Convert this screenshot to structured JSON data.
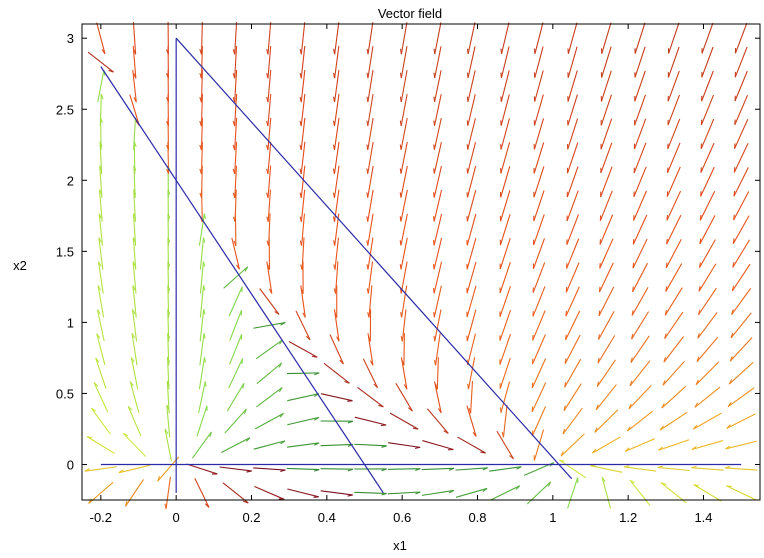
{
  "chart_data": {
    "type": "vector_field",
    "title": "Vector field",
    "xlabel": "x1",
    "ylabel": "x2",
    "xlim": [
      -0.25,
      1.55
    ],
    "ylim": [
      -0.25,
      3.1
    ],
    "xticks": [
      -0.2,
      0,
      0.2,
      0.4,
      0.6,
      0.8,
      1,
      1.2,
      1.4
    ],
    "xtick_labels": [
      "-0.2",
      "0",
      "0.2",
      "0.4",
      "0.6",
      "0.8",
      "1",
      "1.2",
      "1.4"
    ],
    "yticks": [
      0,
      0.5,
      1,
      1.5,
      2,
      2.5,
      3
    ],
    "ytick_labels": [
      "0",
      "0.5",
      "1",
      "1.5",
      "2",
      "2.5",
      "3"
    ],
    "field": {
      "equations": [
        "dx1/dt = x1*(1 - x1 - x2/2)",
        "dx2/dt = x2*(2 - 4*x1 - x2)"
      ],
      "x_range": [
        -0.2,
        1.5
      ],
      "y_range": [
        -0.2,
        3.0
      ],
      "grid": [
        20,
        20
      ],
      "arrow_style": "thin lines with open arrowheads",
      "color_map": [
        "#2e8b2e",
        "#7fd84a",
        "#cfe83a",
        "#f0b020",
        "#e8501c",
        "#7a1020"
      ]
    },
    "lines": [
      {
        "points": [
          [
            -0.2,
            0
          ],
          [
            1.5,
            0
          ]
        ],
        "color": "#2b2ba8"
      },
      {
        "points": [
          [
            0,
            -0.2
          ],
          [
            0,
            3
          ]
        ],
        "color": "#2b2ba8"
      },
      {
        "points": [
          [
            0,
            3
          ],
          [
            1.05,
            -0.1
          ]
        ],
        "color": "#2b2ba8"
      },
      {
        "points": [
          [
            -0.2,
            2.8
          ],
          [
            0.55,
            -0.2
          ]
        ],
        "color": "#2b2ba8"
      }
    ]
  }
}
